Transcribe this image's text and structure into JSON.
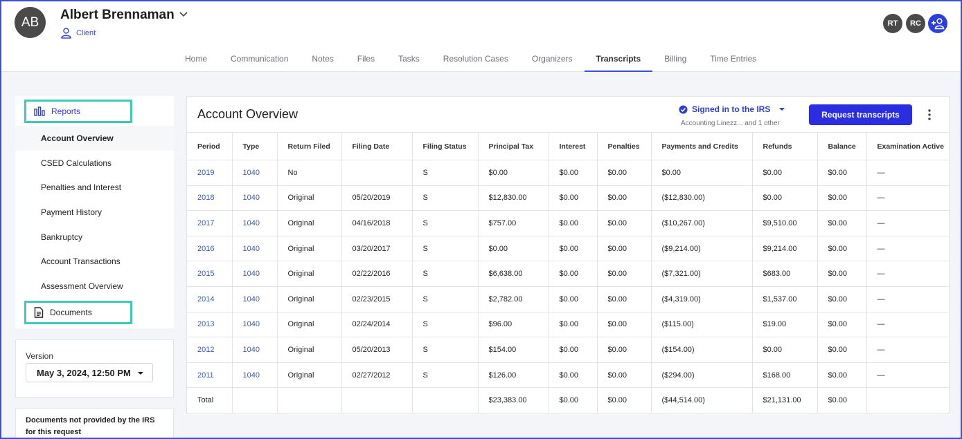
{
  "client": {
    "initials": "AB",
    "name": "Albert Brennaman",
    "role": "Client"
  },
  "team_badges": [
    "RT",
    "RC"
  ],
  "tabs": [
    {
      "label": "Home"
    },
    {
      "label": "Communication"
    },
    {
      "label": "Notes"
    },
    {
      "label": "Files"
    },
    {
      "label": "Tasks"
    },
    {
      "label": "Resolution Cases"
    },
    {
      "label": "Organizers"
    },
    {
      "label": "Transcripts",
      "active": true
    },
    {
      "label": "Billing"
    },
    {
      "label": "Time Entries"
    }
  ],
  "sidebar": {
    "reports_label": "Reports",
    "items": [
      {
        "label": "Account Overview",
        "active": true
      },
      {
        "label": "CSED Calculations"
      },
      {
        "label": "Penalties and Interest"
      },
      {
        "label": "Payment History"
      },
      {
        "label": "Bankruptcy"
      },
      {
        "label": "Account Transactions"
      },
      {
        "label": "Assessment Overview"
      }
    ],
    "documents_label": "Documents"
  },
  "version": {
    "label": "Version",
    "selected": "May 3, 2024, 12:50 PM"
  },
  "docs_note": "Documents not provided by the IRS for this request",
  "main": {
    "title": "Account Overview",
    "irs_status": "Signed in to the IRS",
    "irs_sub": "Accounting Linezz... and 1 other",
    "request_button": "Request transcripts"
  },
  "colors": {
    "accent": "#2a2ee0",
    "highlight": "#3fc9bb",
    "link": "#3a5aa8"
  },
  "table": {
    "columns": [
      "Period",
      "Type",
      "Return Filed",
      "Filing Date",
      "Filing Status",
      "Principal Tax",
      "Interest",
      "Penalties",
      "Payments and Credits",
      "Refunds",
      "Balance",
      "Examination Active"
    ],
    "rows": [
      [
        "2019",
        "1040",
        "No",
        "",
        "S",
        "$0.00",
        "$0.00",
        "$0.00",
        "$0.00",
        "$0.00",
        "$0.00",
        "—"
      ],
      [
        "2018",
        "1040",
        "Original",
        "05/20/2019",
        "S",
        "$12,830.00",
        "$0.00",
        "$0.00",
        "($12,830.00)",
        "$0.00",
        "$0.00",
        "—"
      ],
      [
        "2017",
        "1040",
        "Original",
        "04/16/2018",
        "S",
        "$757.00",
        "$0.00",
        "$0.00",
        "($10,267.00)",
        "$9,510.00",
        "$0.00",
        "—"
      ],
      [
        "2016",
        "1040",
        "Original",
        "03/20/2017",
        "S",
        "$0.00",
        "$0.00",
        "$0.00",
        "($9,214.00)",
        "$9,214.00",
        "$0.00",
        "—"
      ],
      [
        "2015",
        "1040",
        "Original",
        "02/22/2016",
        "S",
        "$6,638.00",
        "$0.00",
        "$0.00",
        "($7,321.00)",
        "$683.00",
        "$0.00",
        "—"
      ],
      [
        "2014",
        "1040",
        "Original",
        "02/23/2015",
        "S",
        "$2,782.00",
        "$0.00",
        "$0.00",
        "($4,319.00)",
        "$1,537.00",
        "$0.00",
        "—"
      ],
      [
        "2013",
        "1040",
        "Original",
        "02/24/2014",
        "S",
        "$96.00",
        "$0.00",
        "$0.00",
        "($115.00)",
        "$19.00",
        "$0.00",
        "—"
      ],
      [
        "2012",
        "1040",
        "Original",
        "05/20/2013",
        "S",
        "$154.00",
        "$0.00",
        "$0.00",
        "($154.00)",
        "$0.00",
        "$0.00",
        "—"
      ],
      [
        "2011",
        "1040",
        "Original",
        "02/27/2012",
        "S",
        "$126.00",
        "$0.00",
        "$0.00",
        "($294.00)",
        "$168.00",
        "$0.00",
        "—"
      ]
    ],
    "total": [
      "Total",
      "",
      "",
      "",
      "",
      "$23,383.00",
      "$0.00",
      "$0.00",
      "($44,514.00)",
      "$21,131.00",
      "$0.00",
      ""
    ]
  }
}
